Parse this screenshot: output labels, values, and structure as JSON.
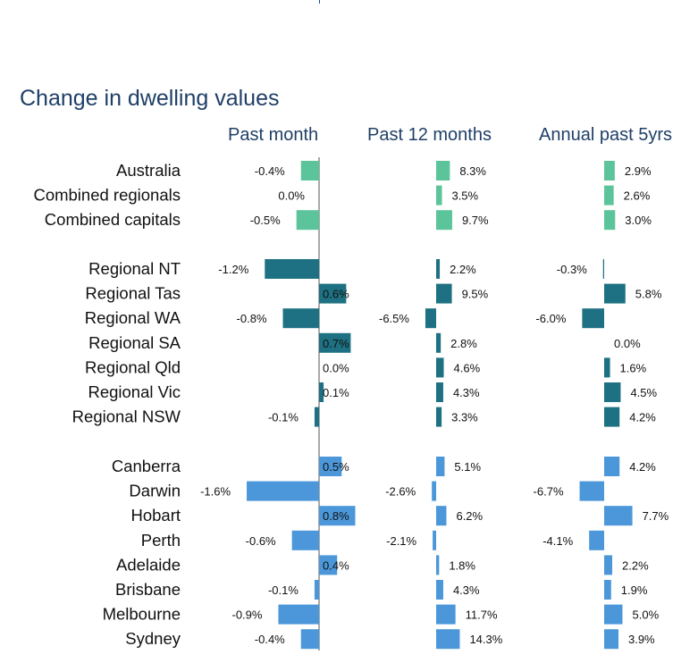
{
  "chart_data": {
    "type": "bar",
    "title": "Change in dwelling values",
    "panels": [
      {
        "name": "Past month",
        "key": "month"
      },
      {
        "name": "Past 12 months",
        "key": "year"
      },
      {
        "name": "Annual past 5yrs",
        "key": "five"
      }
    ],
    "groups": [
      {
        "name": "national",
        "color": "#5cc49a",
        "rows": [
          {
            "label": "Australia",
            "month": -0.4,
            "year": 8.3,
            "five": 2.9
          },
          {
            "label": "Combined regionals",
            "month": 0.0,
            "year": 3.5,
            "five": 2.6
          },
          {
            "label": "Combined capitals",
            "month": -0.5,
            "year": 9.7,
            "five": 3.0
          }
        ]
      },
      {
        "name": "regional",
        "color": "#1e7182",
        "rows": [
          {
            "label": "Regional NT",
            "month": -1.2,
            "year": 2.2,
            "five": -0.3
          },
          {
            "label": "Regional Tas",
            "month": 0.6,
            "year": 9.5,
            "five": 5.8
          },
          {
            "label": "Regional WA",
            "month": -0.8,
            "year": -6.5,
            "five": -6.0
          },
          {
            "label": "Regional SA",
            "month": 0.7,
            "year": 2.8,
            "five": 0.0
          },
          {
            "label": "Regional Qld",
            "month": 0.0,
            "year": 4.6,
            "five": 1.6
          },
          {
            "label": "Regional Vic",
            "month": 0.1,
            "year": 4.3,
            "five": 4.5
          },
          {
            "label": "Regional NSW",
            "month": -0.1,
            "year": 3.3,
            "five": 4.2
          }
        ]
      },
      {
        "name": "capitals",
        "color": "#4b97d9",
        "rows": [
          {
            "label": "Canberra",
            "month": 0.5,
            "year": 5.1,
            "five": 4.2
          },
          {
            "label": "Darwin",
            "month": -1.6,
            "year": -2.6,
            "five": -6.7
          },
          {
            "label": "Hobart",
            "month": 0.8,
            "year": 6.2,
            "five": 7.7
          },
          {
            "label": "Perth",
            "month": -0.6,
            "year": -2.1,
            "five": -4.1
          },
          {
            "label": "Adelaide",
            "month": 0.4,
            "year": 1.8,
            "five": 2.2
          },
          {
            "label": "Brisbane",
            "month": -0.1,
            "year": 4.3,
            "five": 1.9
          },
          {
            "label": "Melbourne",
            "month": -0.9,
            "year": 11.7,
            "five": 5.0
          },
          {
            "label": "Sydney",
            "month": -0.4,
            "year": 14.3,
            "five": 3.9
          }
        ]
      }
    ],
    "value_suffix": "%",
    "axis_color": "#555555"
  }
}
